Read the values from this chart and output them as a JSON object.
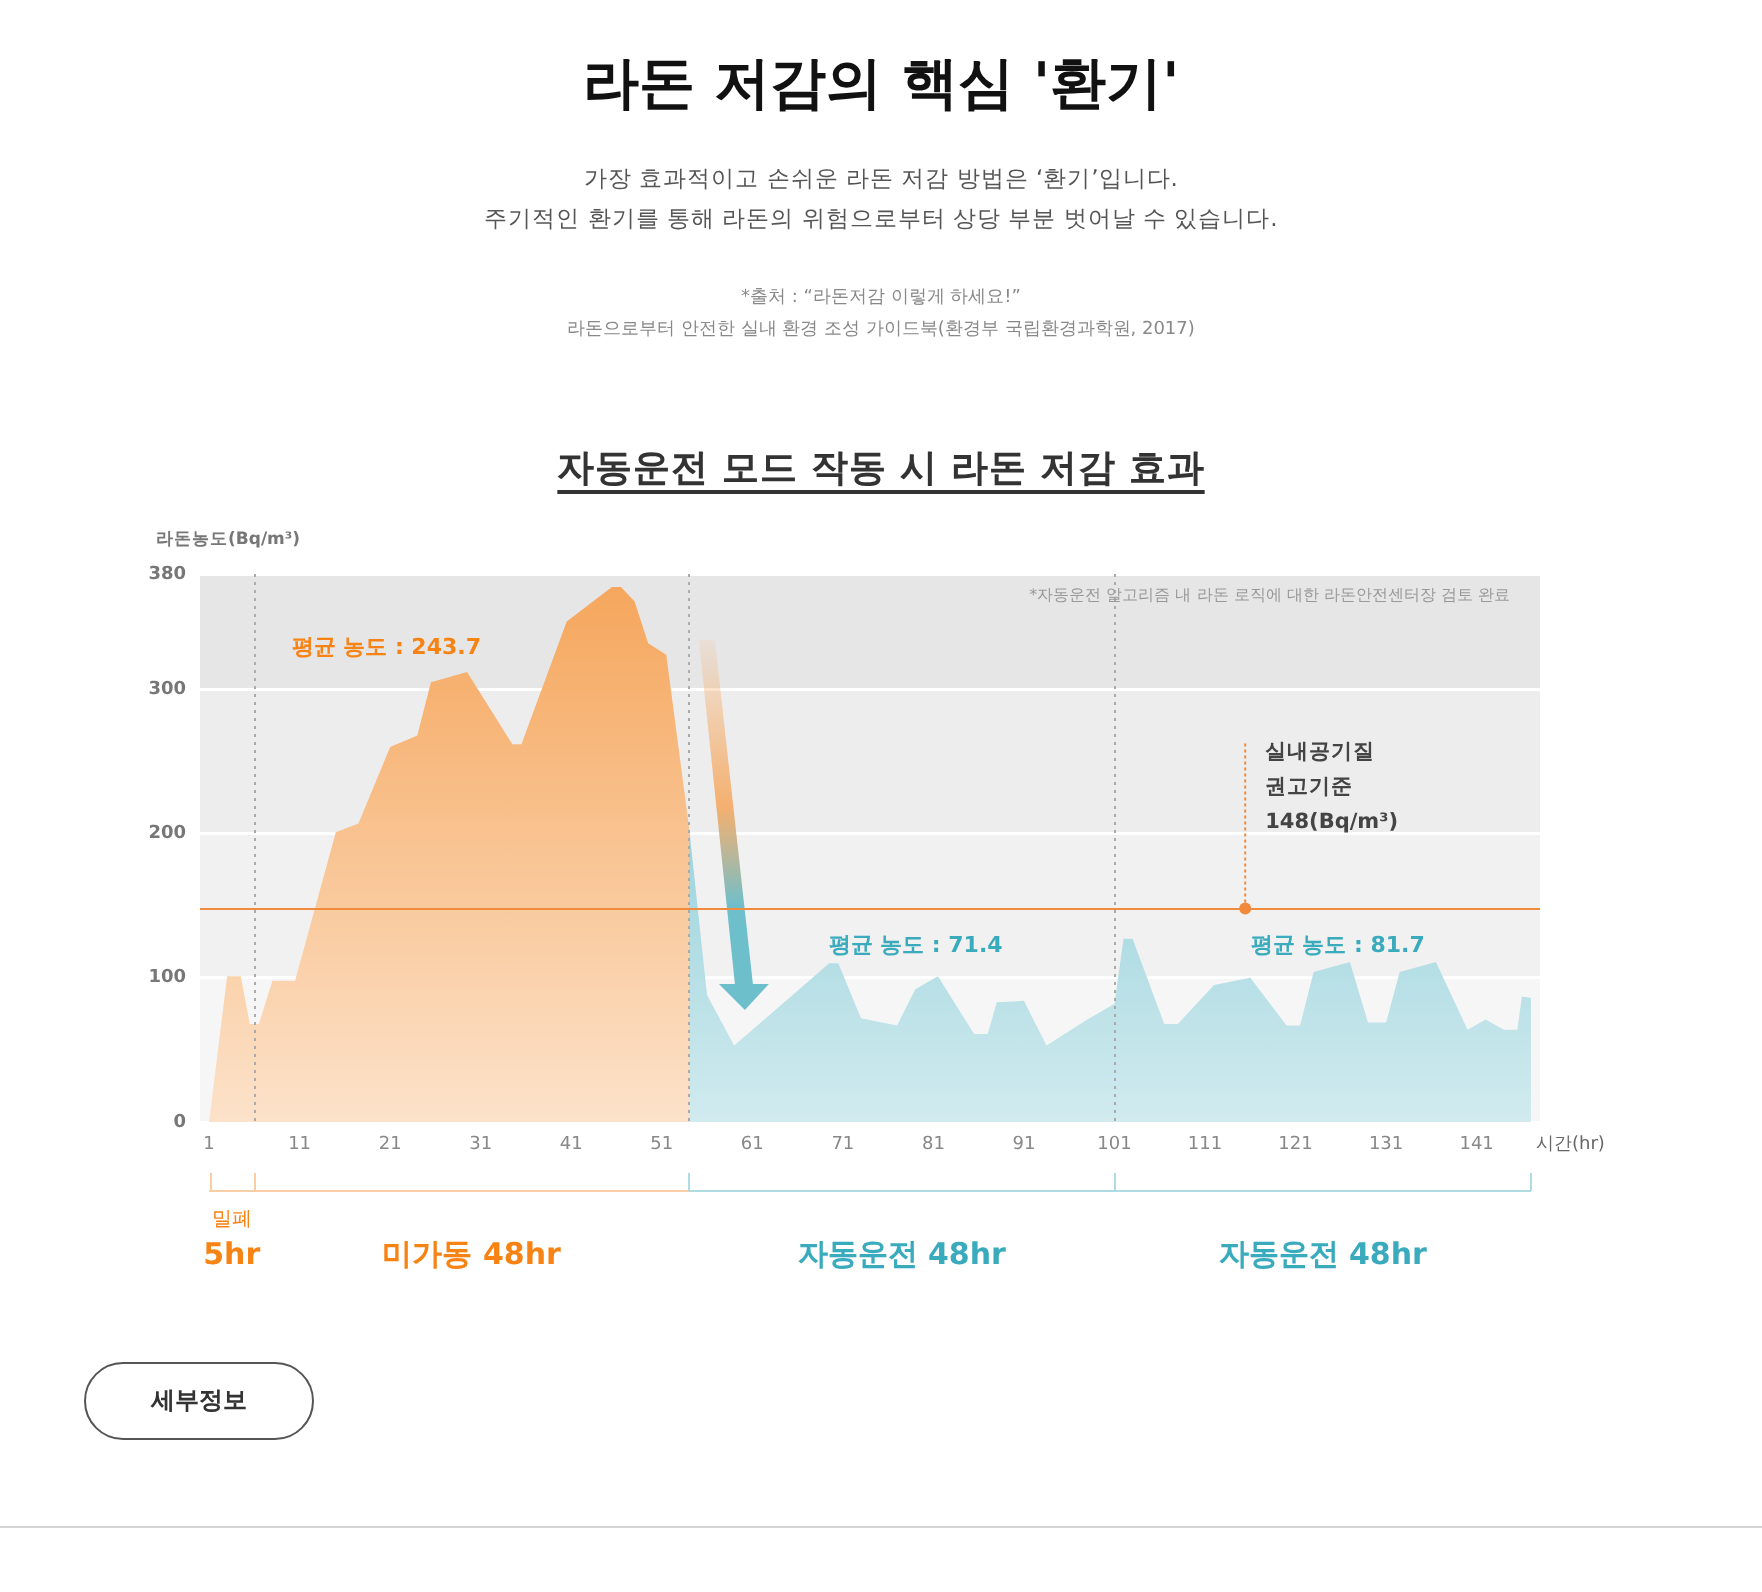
{
  "chart_data": {
    "type": "area",
    "title": "라돈 저감의 핵심 '환기'",
    "subtitle": "가장 효과적이고 손쉬운 라돈 저감 방법은 ‘환기’입니다.\n주기적인 환기를 통해 라돈의 위험으로부터 상당 부분 벗어날 수 있습니다.",
    "xlabel": "시간(hr)",
    "ylabel": "라돈농도(Bq/m³)",
    "xlim": [
      0,
      148
    ],
    "xticks": [
      1,
      11,
      21,
      31,
      41,
      51,
      61,
      71,
      81,
      91,
      101,
      111,
      121,
      131,
      141
    ],
    "ylim": [
      0,
      380
    ],
    "yticks": [
      0,
      100,
      200,
      300,
      380
    ],
    "grid": "y",
    "legend": false,
    "marker": "none",
    "series": [
      {
        "color": "#f5a55a",
        "x": [
          1,
          3,
          4.5,
          5.5,
          6.5,
          8,
          10.5,
          15,
          17.5,
          21,
          24,
          25.5,
          29.5,
          34.5,
          35.5,
          40.5,
          45.5,
          46.5,
          48,
          49.5,
          51.5,
          54
        ],
        "values": [
          0,
          101,
          101,
          68,
          68,
          98,
          98,
          201,
          207,
          260,
          268,
          305,
          312,
          262,
          262,
          347,
          371,
          371,
          361,
          332,
          324,
          205
        ]
      },
      {
        "color": "#6ebfcc",
        "x": [
          54,
          56,
          59,
          69.5,
          70.5,
          73,
          77,
          79,
          81.5,
          85.5,
          87,
          88,
          91,
          93.5,
          98,
          101,
          102,
          103,
          106.5,
          108,
          112,
          116,
          120,
          121.5,
          123,
          127,
          129,
          131,
          132.5,
          136.5,
          140,
          142,
          144,
          145.5,
          146,
          147
        ],
        "values": [
          205,
          88,
          53,
          110,
          110,
          72,
          67,
          92,
          101,
          61,
          61,
          83,
          84,
          53,
          71,
          82,
          127,
          127,
          68,
          68,
          95,
          100,
          67,
          67,
          104,
          111,
          69,
          69,
          104,
          111,
          64,
          71,
          64,
          64,
          87,
          86
        ]
      }
    ],
    "ref_lines": [
      {
        "axis": "x",
        "value": 6,
        "color": "#aaaaaa",
        "line_style": "dotted"
      },
      {
        "axis": "x",
        "value": 54,
        "color": "#aaaaaa",
        "line_style": "dotted"
      },
      {
        "axis": "x",
        "value": 101,
        "color": "#aaaaaa",
        "line_style": "dotted"
      },
      {
        "axis": "y",
        "value": 148,
        "label": "실내공기질 권고기준 148(Bq/m³)",
        "color": "#f08a3c",
        "line_style": "solid"
      }
    ],
    "bands": [
      {
        "axis": "y",
        "from": 300,
        "to": 380,
        "color": "#e7e6e6"
      },
      {
        "axis": "y",
        "from": 200,
        "to": 300,
        "color": "#eeeded"
      },
      {
        "axis": "y",
        "from": 100,
        "to": 200,
        "color": "#f2f1f1"
      },
      {
        "axis": "y",
        "from": 0,
        "to": 100,
        "color": "#f6f6f6"
      }
    ],
    "annotations": [
      "*출처 : “라돈저감 이렇게 하세요!”\n라돈으로부터 안전한 실내 환경 조성 가이드북(환경부 국립환경과학원, 2017)",
      "자동운전 모드 작동 시 라돈 저감 효과",
      "*자동운전 알고리즘 내 라돈 로직에 대한 라돈안전센터장 검토 완료",
      "세부정보",
      "평균 농도 : 243.7",
      "평균 농도 : 71.4",
      "평균 농도 : 81.7",
      "밀폐\n5hr",
      "미가동 48hr",
      "자동운전 48hr",
      "자동운전 48hr"
    ]
  }
}
